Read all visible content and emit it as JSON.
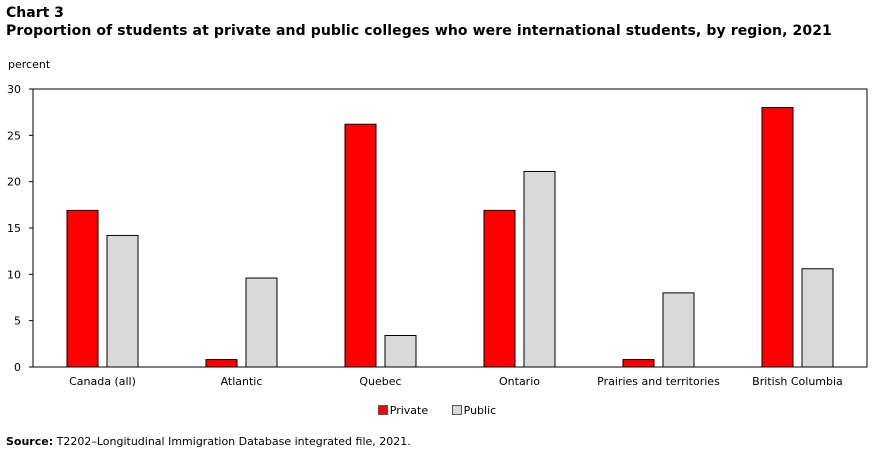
{
  "header": {
    "chart_number": "Chart 3",
    "title": "Proportion of students at private and public colleges who were international students, by region, 2021"
  },
  "chart_data": {
    "type": "bar",
    "ylabel": "percent",
    "ylim": [
      0,
      30
    ],
    "yticks": [
      0,
      5,
      10,
      15,
      20,
      25,
      30
    ],
    "grid": false,
    "legend_position": "bottom-center",
    "categories": [
      "Canada (all)",
      "Atlantic",
      "Quebec",
      "Ontario",
      "Prairies and territories",
      "British Columbia"
    ],
    "series": [
      {
        "name": "Private",
        "color": "#ff0000",
        "values": [
          16.9,
          0.8,
          26.2,
          16.9,
          0.8,
          28.0
        ]
      },
      {
        "name": "Public",
        "color": "#d9d9d9",
        "values": [
          14.2,
          9.6,
          3.4,
          21.1,
          8.0,
          10.6
        ]
      }
    ]
  },
  "source": {
    "label": "Source:",
    "text": " T2202–Longitudinal Immigration Database integrated file, 2021."
  }
}
